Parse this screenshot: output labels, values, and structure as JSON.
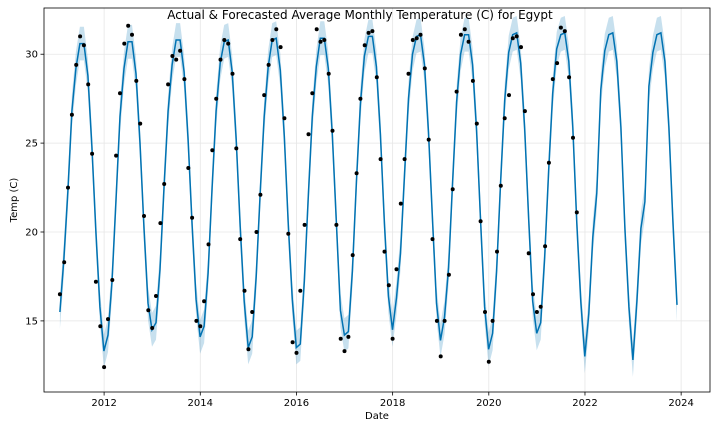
{
  "chart_data": {
    "type": "line",
    "title": "Actual & Forecasted Average Monthly Temperature (C) for Egypt",
    "xlabel": "Date",
    "ylabel": "Temp (C)",
    "xlim": [
      2010.75,
      2024.6
    ],
    "ylim": [
      11.0,
      32.6
    ],
    "xticks": [
      2012,
      2014,
      2016,
      2018,
      2020,
      2022,
      2024
    ],
    "yticks": [
      15,
      20,
      25,
      30
    ],
    "grid": true,
    "legend": "none",
    "colors": {
      "forecast": "#0072B2",
      "band": "#0072B2",
      "actual": "#000000"
    },
    "series": [
      {
        "kind": "actual-points",
        "x": [
          2011.08,
          2011.17,
          2011.25,
          2011.33,
          2011.42,
          2011.5,
          2011.58,
          2011.67,
          2011.75,
          2011.83,
          2011.92,
          2012.0,
          2012.08,
          2012.17,
          2012.25,
          2012.33,
          2012.42,
          2012.5,
          2012.58,
          2012.67,
          2012.75,
          2012.83,
          2012.92,
          2013.0,
          2013.08,
          2013.17,
          2013.25,
          2013.33,
          2013.42,
          2013.5,
          2013.58,
          2013.67,
          2013.75,
          2013.83,
          2013.92,
          2014.0,
          2014.08,
          2014.17,
          2014.25,
          2014.33,
          2014.42,
          2014.5,
          2014.58,
          2014.67,
          2014.75,
          2014.83,
          2014.92,
          2015.0,
          2015.08,
          2015.17,
          2015.25,
          2015.33,
          2015.42,
          2015.5,
          2015.58,
          2015.67,
          2015.75,
          2015.83,
          2015.92,
          2016.0,
          2016.08,
          2016.17,
          2016.25,
          2016.33,
          2016.42,
          2016.5,
          2016.58,
          2016.67,
          2016.75,
          2016.83,
          2016.92,
          2017.0,
          2017.08,
          2017.17,
          2017.25,
          2017.33,
          2017.42,
          2017.5,
          2017.58,
          2017.67,
          2017.75,
          2017.83,
          2017.92,
          2018.0,
          2018.08,
          2018.17,
          2018.25,
          2018.33,
          2018.42,
          2018.5,
          2018.58,
          2018.67,
          2018.75,
          2018.83,
          2018.92,
          2019.0,
          2019.08,
          2019.17,
          2019.25,
          2019.33,
          2019.42,
          2019.5,
          2019.58,
          2019.67,
          2019.75,
          2019.83,
          2019.92,
          2020.0,
          2020.08,
          2020.17,
          2020.25,
          2020.33,
          2020.42,
          2020.5,
          2020.58,
          2020.67,
          2020.75,
          2020.83,
          2020.92,
          2021.0,
          2021.08,
          2021.17,
          2021.25,
          2021.33,
          2021.42,
          2021.5,
          2021.58,
          2021.67,
          2021.75,
          2021.83
        ],
        "y": [
          16.5,
          18.3,
          22.5,
          26.6,
          29.4,
          31.0,
          30.5,
          28.3,
          24.4,
          17.2,
          14.7,
          12.4,
          15.1,
          17.3,
          24.3,
          27.8,
          30.6,
          31.6,
          31.1,
          28.5,
          26.1,
          20.9,
          15.6,
          14.6,
          16.4,
          20.5,
          22.7,
          28.3,
          29.9,
          29.7,
          30.2,
          28.6,
          23.6,
          20.8,
          15.0,
          14.7,
          16.1,
          19.3,
          24.6,
          27.5,
          29.7,
          30.8,
          30.6,
          28.9,
          24.7,
          19.6,
          16.7,
          13.4,
          15.5,
          20.0,
          22.1,
          27.7,
          29.4,
          30.8,
          31.4,
          30.4,
          26.4,
          19.9,
          13.8,
          13.2,
          16.7,
          20.4,
          25.5,
          27.8,
          31.4,
          30.7,
          30.8,
          28.9,
          25.7,
          20.4,
          14.0,
          13.3,
          14.1,
          18.7,
          23.3,
          27.5,
          30.5,
          31.2,
          31.3,
          28.7,
          24.1,
          18.9,
          17.0,
          14.0,
          17.9,
          21.6,
          24.1,
          28.9,
          30.8,
          30.9,
          31.1,
          29.2,
          25.2,
          19.6,
          15.0,
          13.0,
          15.0,
          17.6,
          22.4,
          27.9,
          31.1,
          31.4,
          30.7,
          28.5,
          26.1,
          20.6,
          15.5,
          12.7,
          15.0,
          18.9,
          22.6,
          26.4,
          27.7,
          30.9,
          31.0,
          30.4,
          26.8,
          18.8,
          16.5,
          15.5,
          15.8,
          19.2,
          23.9,
          28.6,
          29.5,
          31.5,
          31.3,
          28.7,
          25.3,
          21.1
        ]
      },
      {
        "kind": "forecast-line",
        "x_start": 2011.08,
        "x_step": 0.08333,
        "y": [
          15.5,
          18.5,
          22.3,
          26.8,
          29.2,
          30.6,
          30.6,
          28.8,
          24.8,
          20.0,
          15.8,
          13.3,
          14.2,
          17.2,
          21.8,
          26.5,
          29.2,
          30.7,
          30.7,
          28.9,
          25.0,
          20.2,
          16.0,
          14.5,
          14.9,
          17.9,
          22.6,
          26.8,
          29.4,
          30.8,
          30.8,
          29.0,
          25.2,
          20.4,
          16.2,
          14.1,
          14.7,
          17.7,
          22.5,
          26.8,
          29.5,
          30.7,
          30.8,
          29.0,
          25.2,
          20.3,
          16.1,
          13.5,
          14.1,
          17.5,
          22.2,
          26.5,
          29.3,
          30.8,
          30.9,
          29.1,
          25.4,
          20.4,
          16.2,
          13.5,
          13.7,
          17.2,
          22.0,
          26.5,
          29.3,
          30.9,
          30.9,
          29.2,
          25.5,
          20.5,
          15.6,
          14.2,
          14.4,
          17.8,
          22.8,
          27.2,
          29.9,
          31.0,
          31.0,
          29.3,
          25.5,
          20.5,
          16.4,
          14.5,
          16.3,
          18.8,
          23.2,
          27.5,
          30.0,
          31.0,
          31.1,
          29.4,
          25.6,
          20.7,
          16.0,
          13.9,
          15.2,
          18.0,
          22.8,
          27.3,
          30.0,
          31.1,
          31.1,
          29.4,
          25.7,
          20.6,
          15.8,
          13.4,
          14.3,
          17.8,
          22.8,
          27.4,
          30.1,
          31.1,
          31.2,
          29.5,
          25.8,
          20.7,
          16.1,
          14.3,
          14.9,
          18.6,
          23.5,
          27.8,
          30.3,
          31.1,
          31.2,
          29.6,
          25.9,
          20.5,
          16.1,
          13.0,
          15.4,
          19.7,
          22.2,
          28.0,
          30.2,
          31.1,
          31.2,
          29.6,
          25.9,
          20.2,
          15.8,
          12.8,
          16.1,
          20.2,
          21.7,
          28.2,
          30.1,
          31.1,
          31.2,
          29.6,
          25.9,
          20.6,
          15.9
        ]
      }
    ],
    "band_halfwidth": 0.95
  }
}
